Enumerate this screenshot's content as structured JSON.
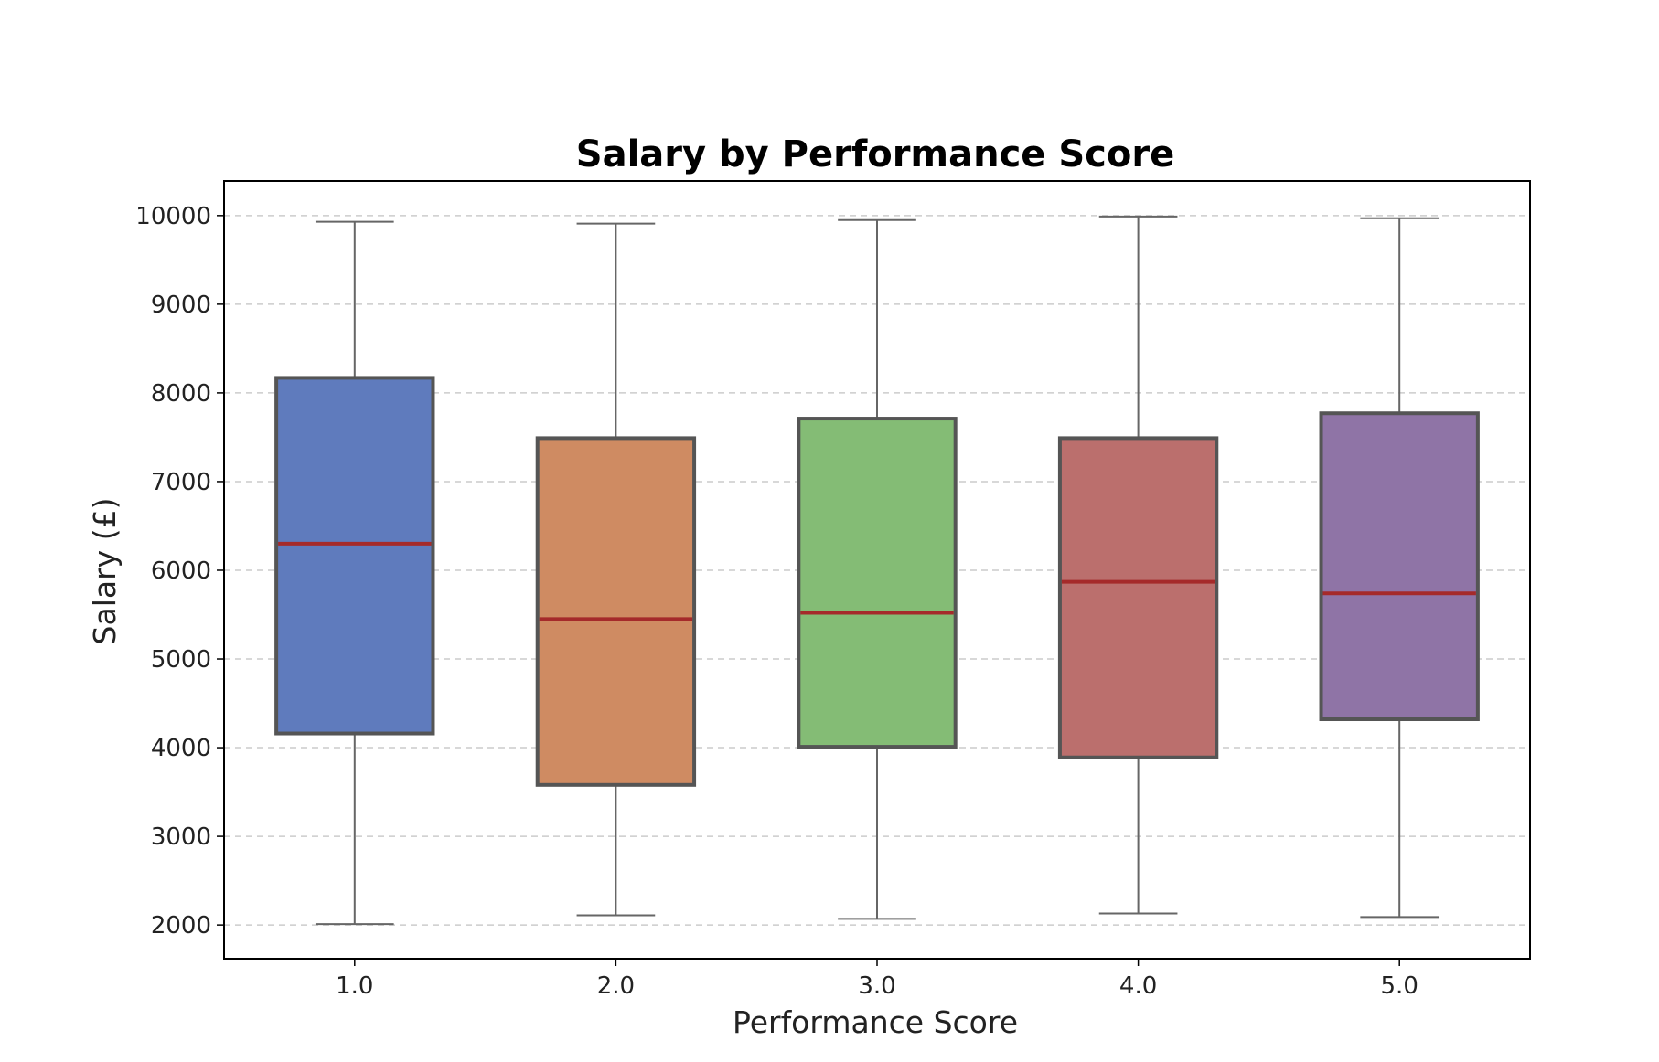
{
  "chart_data": {
    "type": "box",
    "title": "Salary by Performance Score",
    "xlabel": "Performance Score",
    "ylabel": "Salary (£)",
    "categories": [
      "1.0",
      "2.0",
      "3.0",
      "4.0",
      "5.0"
    ],
    "y_ticks": [
      "2000",
      "3000",
      "4000",
      "5000",
      "6000",
      "7000",
      "8000",
      "9000",
      "10000"
    ],
    "ylim": [
      1620,
      10390
    ],
    "grid": "horizontal dashed",
    "boxes": [
      {
        "category": "1.0",
        "whisker_low": 2010,
        "q1": 4160,
        "median": 6300,
        "q3": 8170,
        "whisker_high": 9930,
        "color": "#5f7bbd"
      },
      {
        "category": "2.0",
        "whisker_low": 2110,
        "q1": 3580,
        "median": 5450,
        "q3": 7490,
        "whisker_high": 9910,
        "color": "#cf8b62"
      },
      {
        "category": "3.0",
        "whisker_low": 2070,
        "q1": 4010,
        "median": 5520,
        "q3": 7710,
        "whisker_high": 9950,
        "color": "#84bc75"
      },
      {
        "category": "4.0",
        "whisker_low": 2130,
        "q1": 3890,
        "median": 5870,
        "q3": 7490,
        "whisker_high": 9990,
        "color": "#bb6f6d"
      },
      {
        "category": "5.0",
        "whisker_low": 2090,
        "q1": 4320,
        "median": 5740,
        "q3": 7770,
        "whisker_high": 9970,
        "color": "#8f74a6"
      }
    ],
    "colors": {
      "box_edge": "#555555",
      "median_line": "#a52a2a",
      "whisker": "#666666",
      "grid": "#cccccc",
      "axes_frame": "#000000"
    }
  }
}
